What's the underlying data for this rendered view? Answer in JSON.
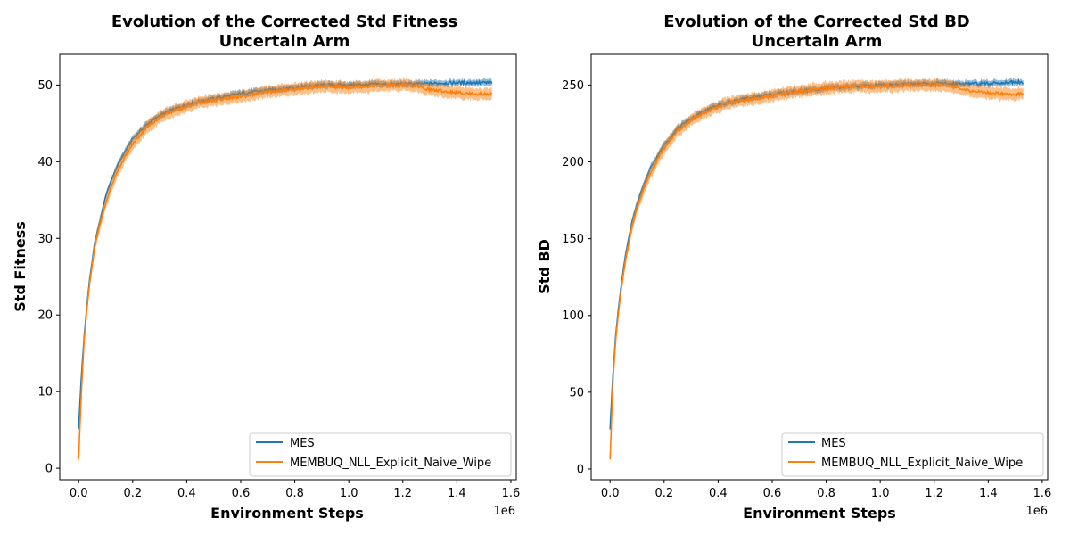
{
  "chart_data": [
    {
      "type": "line",
      "title_line1": "Evolution of the Corrected Std Fitness",
      "title_line2": "Uncertain Arm",
      "xlabel": "Environment Steps",
      "ylabel": "Std Fitness",
      "x_multiplier_label": "1e6",
      "xlim": [
        -0.07,
        1.62
      ],
      "ylim": [
        -1.5,
        54
      ],
      "xticks": [
        0.0,
        0.2,
        0.4,
        0.6,
        0.8,
        1.0,
        1.2,
        1.4,
        1.6
      ],
      "xtick_labels": [
        "0.0",
        "0.2",
        "0.4",
        "0.6",
        "0.8",
        "1.0",
        "1.2",
        "1.4",
        "1.6"
      ],
      "yticks": [
        0,
        10,
        20,
        30,
        40,
        50
      ],
      "ytick_labels": [
        "0",
        "10",
        "20",
        "30",
        "40",
        "50"
      ],
      "legend_position": "lower right",
      "series": [
        {
          "name": "MES",
          "color": "#1f77b4",
          "x": [
            0.0,
            0.01,
            0.02,
            0.03,
            0.04,
            0.05,
            0.06,
            0.08,
            0.1,
            0.12,
            0.15,
            0.2,
            0.25,
            0.3,
            0.35,
            0.4,
            0.45,
            0.5,
            0.6,
            0.7,
            0.8,
            0.9,
            1.0,
            1.1,
            1.2,
            1.3,
            1.4,
            1.5,
            1.53
          ],
          "y": [
            5.2,
            12,
            17,
            21,
            24.5,
            27,
            29.5,
            32.5,
            35.5,
            37.5,
            40,
            43,
            44.8,
            46,
            46.8,
            47.4,
            47.9,
            48.2,
            48.9,
            49.3,
            49.7,
            50.0,
            50.0,
            50.1,
            50.1,
            50.2,
            50.3,
            50.3,
            50.3
          ],
          "band": 0.5
        },
        {
          "name": "MEMBUQ_NLL_Explicit_Naive_Wipe",
          "color": "#ff7f0e",
          "x": [
            0.0,
            0.01,
            0.02,
            0.03,
            0.04,
            0.05,
            0.06,
            0.08,
            0.1,
            0.12,
            0.15,
            0.2,
            0.25,
            0.3,
            0.35,
            0.4,
            0.45,
            0.5,
            0.6,
            0.7,
            0.8,
            0.9,
            1.0,
            1.1,
            1.2,
            1.25,
            1.3,
            1.4,
            1.5,
            1.53
          ],
          "y": [
            1.2,
            10,
            16.5,
            20.5,
            24,
            26.5,
            29,
            32,
            34.5,
            36.7,
            39.3,
            42.3,
            44.4,
            45.8,
            46.6,
            47.2,
            47.8,
            48.0,
            48.5,
            49.1,
            49.5,
            49.8,
            49.7,
            49.9,
            50.0,
            49.8,
            49.4,
            49.0,
            48.8,
            48.9
          ],
          "band": 0.9
        }
      ]
    },
    {
      "type": "line",
      "title_line1": "Evolution of the Corrected Std BD",
      "title_line2": "Uncertain Arm",
      "xlabel": "Environment Steps",
      "ylabel": "Std BD",
      "x_multiplier_label": "1e6",
      "xlim": [
        -0.07,
        1.62
      ],
      "ylim": [
        -7,
        270
      ],
      "xticks": [
        0.0,
        0.2,
        0.4,
        0.6,
        0.8,
        1.0,
        1.2,
        1.4,
        1.6
      ],
      "xtick_labels": [
        "0.0",
        "0.2",
        "0.4",
        "0.6",
        "0.8",
        "1.0",
        "1.2",
        "1.4",
        "1.6"
      ],
      "yticks": [
        0,
        50,
        100,
        150,
        200,
        250
      ],
      "ytick_labels": [
        "0",
        "50",
        "100",
        "150",
        "200",
        "250"
      ],
      "legend_position": "lower right",
      "series": [
        {
          "name": "MES",
          "color": "#1f77b4",
          "x": [
            0.0,
            0.01,
            0.02,
            0.03,
            0.04,
            0.05,
            0.06,
            0.08,
            0.1,
            0.12,
            0.15,
            0.2,
            0.25,
            0.3,
            0.35,
            0.4,
            0.45,
            0.5,
            0.6,
            0.7,
            0.8,
            0.9,
            1.0,
            1.1,
            1.2,
            1.3,
            1.4,
            1.5,
            1.53
          ],
          "y": [
            26,
            60,
            85,
            103,
            118,
            131,
            142,
            160,
            173,
            183,
            196,
            211,
            222,
            228,
            233,
            237,
            239,
            241,
            244,
            246,
            248,
            249,
            250,
            250.5,
            251,
            251,
            251,
            252,
            252
          ],
          "band": 2.5
        },
        {
          "name": "MEMBUQ_NLL_Explicit_Naive_Wipe",
          "color": "#ff7f0e",
          "x": [
            0.0,
            0.01,
            0.02,
            0.03,
            0.04,
            0.05,
            0.06,
            0.08,
            0.1,
            0.12,
            0.15,
            0.2,
            0.25,
            0.3,
            0.35,
            0.4,
            0.45,
            0.5,
            0.6,
            0.7,
            0.8,
            0.9,
            1.0,
            1.1,
            1.2,
            1.25,
            1.3,
            1.4,
            1.5,
            1.53
          ],
          "y": [
            6,
            55,
            82,
            100,
            115,
            128,
            139,
            157,
            170,
            180,
            193,
            209,
            220,
            227,
            232,
            236,
            239,
            240,
            243,
            246,
            248,
            249,
            249,
            250,
            250,
            250,
            247,
            245,
            244,
            245
          ],
          "band": 4.5
        }
      ]
    }
  ]
}
